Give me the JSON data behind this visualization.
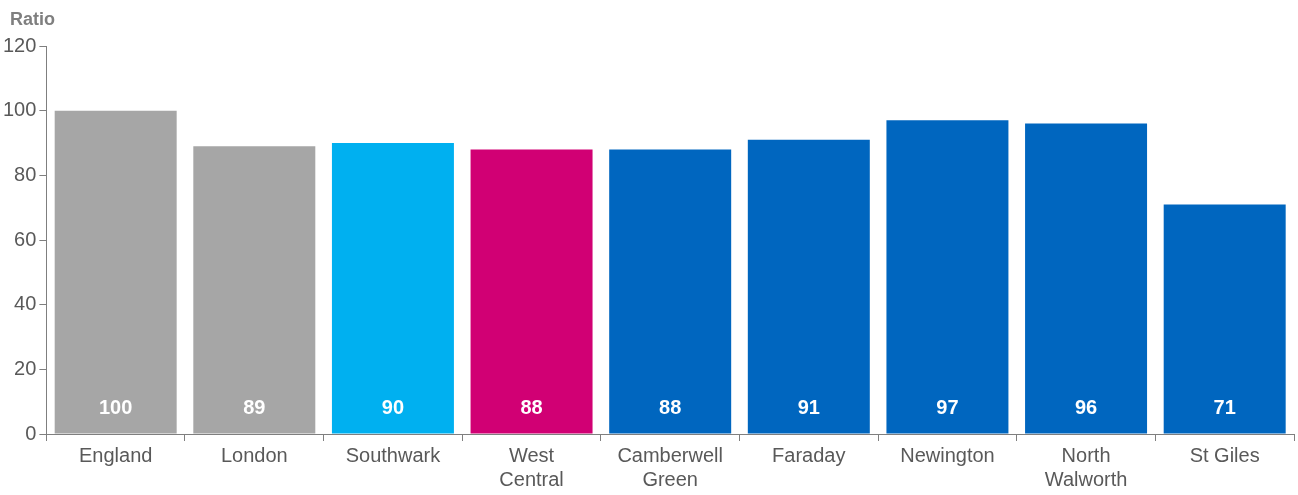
{
  "chart_data": {
    "type": "bar",
    "ylabel": "Ratio",
    "categories": [
      "England",
      "London",
      "Southwark",
      "West Central",
      "Camberwell Green",
      "Faraday",
      "Newington",
      "North Walworth",
      "St Giles"
    ],
    "values": [
      100,
      89,
      90,
      88,
      88,
      91,
      97,
      96,
      71
    ],
    "colors": [
      "#a6a6a6",
      "#a6a6a6",
      "#00b0f0",
      "#d10074",
      "#0066bf",
      "#0066bf",
      "#0066bf",
      "#0066bf",
      "#0066bf"
    ],
    "ylim": [
      0,
      120
    ],
    "yticks": [
      0,
      20,
      40,
      60,
      80,
      100,
      120
    ],
    "grid": false,
    "legend": false,
    "data_labels": true
  }
}
